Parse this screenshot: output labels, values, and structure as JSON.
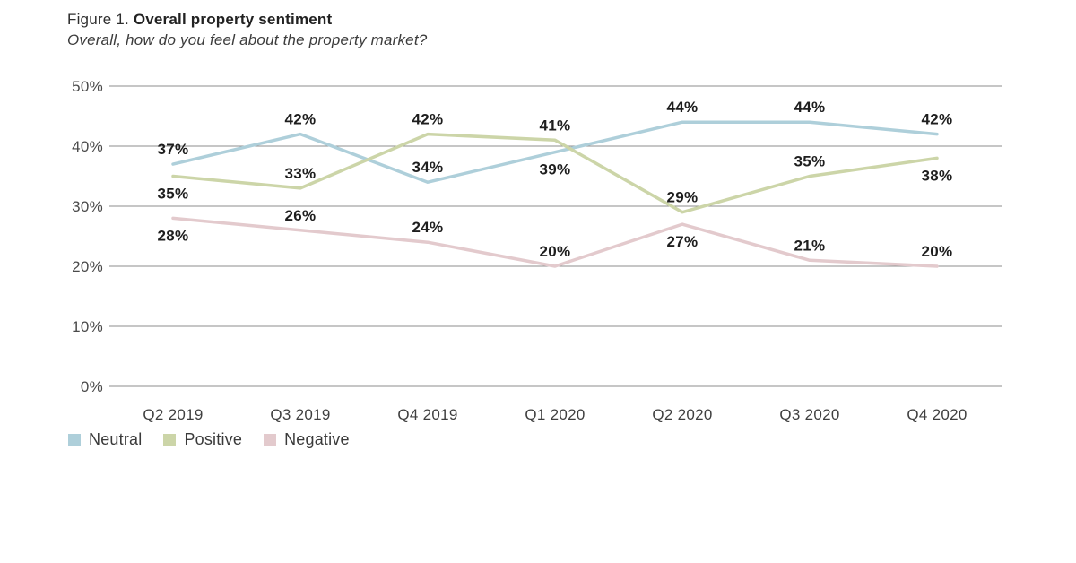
{
  "figure": {
    "label": "Figure 1.",
    "title": "Overall property sentiment",
    "subtitle": "Overall, how do you feel about the property market?"
  },
  "chart_data": {
    "type": "line",
    "title": "Figure 1. Overall property sentiment",
    "subtitle": "Overall, how do you feel about the property market?",
    "categories": [
      "Q2 2019",
      "Q3 2019",
      "Q4 2019",
      "Q1 2020",
      "Q2 2020",
      "Q3 2020",
      "Q4 2020"
    ],
    "series": [
      {
        "name": "Neutral",
        "color": "#aecfda",
        "values": [
          37,
          42,
          34,
          39,
          44,
          44,
          42
        ],
        "label_position": [
          "above",
          "above",
          "above",
          "below",
          "above",
          "above",
          "above"
        ]
      },
      {
        "name": "Positive",
        "color": "#ccd5a8",
        "values": [
          35,
          33,
          42,
          41,
          29,
          35,
          38
        ],
        "label_position": [
          "below",
          "above",
          "above",
          "above",
          "above",
          "above",
          "below"
        ]
      },
      {
        "name": "Negative",
        "color": "#e3cacd",
        "values": [
          28,
          26,
          24,
          20,
          27,
          21,
          20
        ],
        "label_position": [
          "below",
          "above",
          "above",
          "above",
          "below",
          "above",
          "above"
        ]
      }
    ],
    "xlabel": "",
    "ylabel": "",
    "ylim": [
      0,
      50
    ],
    "yticks": [
      0,
      10,
      20,
      30,
      40,
      50
    ],
    "ytick_suffix": "%",
    "value_label_suffix": "%",
    "grid": "horizontal",
    "legend_position": "bottom-left"
  },
  "legend": {
    "items": [
      {
        "label": "Neutral",
        "color": "#aecfda"
      },
      {
        "label": "Positive",
        "color": "#ccd5a8"
      },
      {
        "label": "Negative",
        "color": "#e3cacd"
      }
    ]
  }
}
